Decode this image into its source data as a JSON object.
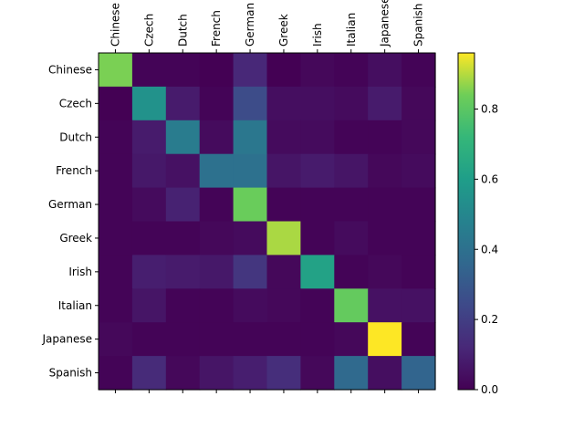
{
  "chart_data": {
    "type": "heatmap",
    "title": "",
    "xlabel": "",
    "ylabel": "",
    "x_categories": [
      "Chinese",
      "Czech",
      "Dutch",
      "French",
      "German",
      "Greek",
      "Irish",
      "Italian",
      "Japanese",
      "Spanish"
    ],
    "y_categories": [
      "Chinese",
      "Czech",
      "Dutch",
      "French",
      "German",
      "Greek",
      "Irish",
      "Italian",
      "Japanese",
      "Spanish"
    ],
    "x_tick_position": "top",
    "x_tick_rotation": "vertical",
    "values": [
      [
        0.85,
        0.01,
        0.01,
        0.0,
        0.12,
        0.0,
        0.02,
        0.01,
        0.04,
        0.01
      ],
      [
        0.0,
        0.55,
        0.08,
        0.01,
        0.25,
        0.04,
        0.04,
        0.03,
        0.08,
        0.02
      ],
      [
        0.01,
        0.08,
        0.45,
        0.03,
        0.43,
        0.03,
        0.03,
        0.01,
        0.01,
        0.02
      ],
      [
        0.01,
        0.07,
        0.05,
        0.4,
        0.4,
        0.06,
        0.08,
        0.06,
        0.02,
        0.03
      ],
      [
        0.01,
        0.03,
        0.1,
        0.01,
        0.83,
        0.01,
        0.01,
        0.01,
        0.01,
        0.01
      ],
      [
        0.01,
        0.01,
        0.01,
        0.02,
        0.03,
        0.89,
        0.01,
        0.03,
        0.01,
        0.01
      ],
      [
        0.01,
        0.09,
        0.08,
        0.07,
        0.17,
        0.02,
        0.62,
        0.01,
        0.02,
        0.01
      ],
      [
        0.01,
        0.06,
        0.01,
        0.01,
        0.03,
        0.02,
        0.01,
        0.82,
        0.05,
        0.05
      ],
      [
        0.02,
        0.01,
        0.01,
        0.01,
        0.01,
        0.01,
        0.01,
        0.02,
        0.96,
        0.01
      ],
      [
        0.01,
        0.13,
        0.02,
        0.06,
        0.09,
        0.14,
        0.02,
        0.37,
        0.04,
        0.35
      ]
    ],
    "colormap": "viridis",
    "colorbar": {
      "vmin": 0.0,
      "vmax": 0.96,
      "ticks": [
        0.0,
        0.2,
        0.4,
        0.6,
        0.8
      ],
      "tick_labels": [
        "0.0",
        "0.2",
        "0.4",
        "0.6",
        "0.8"
      ]
    },
    "grid": false
  }
}
